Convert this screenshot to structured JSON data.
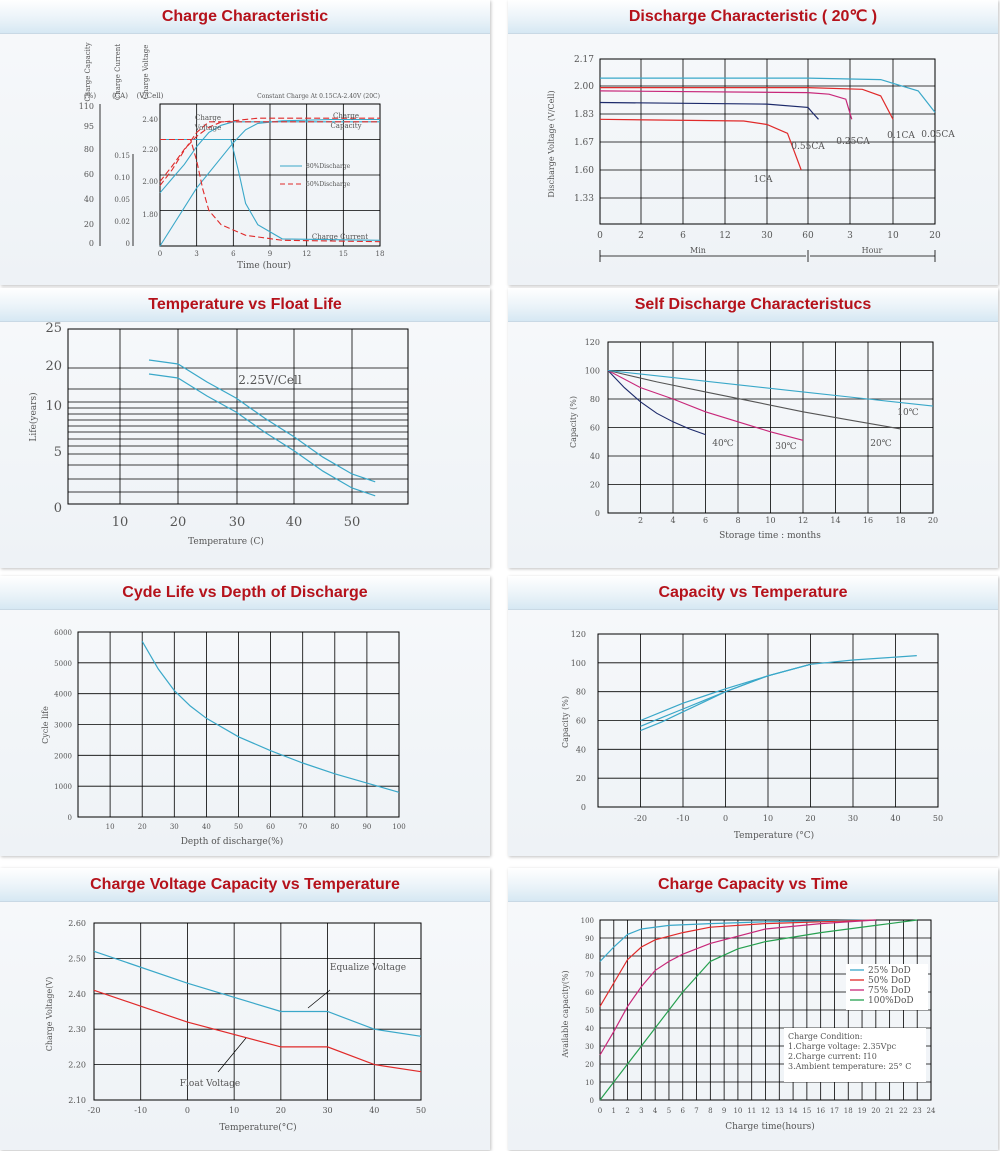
{
  "colors": {
    "title_red": "#b5121b",
    "teal": "#3aa8c9",
    "red": "#e02a2a",
    "magenta": "#c8287a",
    "navy": "#1d2a6b",
    "green": "#27a050",
    "grid": "#000000"
  },
  "panels": {
    "p1": {
      "title": "Charge Characteristic",
      "chart_data": {
        "type": "line",
        "title": "Charge Characteristic",
        "annotation": "Constant Charge At 0.15CA-2.40V (20C)",
        "axis_headers": {
          "capacity": "Charge Capacity",
          "current": "Charge Current",
          "voltage": "Charge Voltage",
          "units": [
            "(%)",
            "(CA)",
            "(V/Cell)"
          ]
        },
        "xlabel": "Time (hour)",
        "x_ticks": [
          "0",
          "3",
          "6",
          "9",
          "12",
          "15",
          "18"
        ],
        "capacity_ticks": [
          "110",
          "95",
          "80",
          "60",
          "40",
          "20",
          "0"
        ],
        "current_ticks": [
          "0.15",
          "0.10",
          "0.05",
          "0.02",
          "0"
        ],
        "voltage_ticks": [
          "2.40",
          "2.20",
          "2.00",
          "1.80"
        ],
        "legend": [
          "80%Discharge",
          "50%Discharge"
        ],
        "curve_labels": {
          "voltage": "Charge Voltage",
          "capacity": "Charge Capacity",
          "current": "Charge Current"
        },
        "series": [
          {
            "name": "80%Discharge",
            "curve": "Charge Voltage",
            "x": [
              0,
              1,
              2,
              3,
              4,
              5,
              6,
              18
            ],
            "y": [
              2.0,
              2.08,
              2.16,
              2.26,
              2.34,
              2.38,
              2.4,
              2.4
            ]
          },
          {
            "name": "80%Discharge",
            "curve": "Charge Capacity",
            "x": [
              0,
              3,
              6,
              7,
              8,
              10,
              14,
              18
            ],
            "y": [
              0,
              45,
              80,
              90,
              95,
              97,
              98,
              98
            ]
          },
          {
            "name": "80%Discharge",
            "curve": "Charge Current",
            "x": [
              0,
              5.8,
              6.5,
              7,
              8,
              10,
              18
            ],
            "y": [
              0.15,
              0.15,
              0.1,
              0.06,
              0.03,
              0.01,
              0.008
            ]
          },
          {
            "name": "50%Discharge",
            "curve": "Charge Voltage",
            "x": [
              0,
              1,
              2,
              3,
              4,
              18
            ],
            "y": [
              2.04,
              2.13,
              2.24,
              2.34,
              2.4,
              2.4
            ]
          },
          {
            "name": "50%Discharge",
            "curve": "Charge Capacity",
            "x": [
              0,
              1,
              2,
              3,
              4,
              5,
              8,
              18
            ],
            "y": [
              50,
              62,
              75,
              85,
              92,
              96,
              99,
              99
            ]
          },
          {
            "name": "50%Discharge",
            "curve": "Charge Current",
            "x": [
              0,
              2.5,
              3,
              3.5,
              4,
              5,
              7,
              10,
              18
            ],
            "y": [
              0.15,
              0.15,
              0.12,
              0.08,
              0.05,
              0.03,
              0.015,
              0.008,
              0.006
            ]
          }
        ]
      }
    },
    "p2": {
      "title": "Discharge Characteristic ( 20℃ )",
      "chart_data": {
        "type": "line",
        "title": "Discharge Characteristic ( 20℃ )",
        "ylabel": "Discharge Voltage (V/Cell)",
        "y_ticks": [
          "2.17",
          "2.00",
          "1.83",
          "1.67",
          "1.60",
          "1.33"
        ],
        "x_ticks": [
          "0",
          "2",
          "6",
          "12",
          "30",
          "60",
          "3",
          "10",
          "20"
        ],
        "x_unit_labels": [
          "Min",
          "Hour"
        ],
        "series": [
          {
            "name": "1CA",
            "x": [
              "0",
              "20min",
              "30min",
              "45min",
              "55min"
            ],
            "y": [
              1.8,
              1.79,
              1.77,
              1.72,
              1.6
            ]
          },
          {
            "name": "0.55CA",
            "x": [
              "0",
              "30min",
              "60min",
              "1.2h",
              "1.5h"
            ],
            "y": [
              1.9,
              1.89,
              1.87,
              1.84,
              1.8
            ]
          },
          {
            "name": "0.25CA",
            "x": [
              "0",
              "60min",
              "2h",
              "2.8h",
              "3.3h"
            ],
            "y": [
              1.97,
              1.96,
              1.95,
              1.92,
              1.8
            ]
          },
          {
            "name": "0.1CA",
            "x": [
              "0",
              "60min",
              "5h",
              "8h",
              "10h"
            ],
            "y": [
              1.99,
              1.99,
              1.98,
              1.94,
              1.8
            ]
          },
          {
            "name": "0.05CA",
            "x": [
              "0",
              "60min",
              "8h",
              "16h",
              "20h"
            ],
            "y": [
              2.05,
              2.05,
              2.04,
              1.97,
              1.84
            ]
          }
        ]
      }
    },
    "p3": {
      "title": "Temperature vs Float Life",
      "chart_data": {
        "type": "line",
        "title": "Temperature vs Float Life",
        "xlabel": "Temperature (C)",
        "ylabel": "Life(years)",
        "x_ticks": [
          "10",
          "20",
          "30",
          "40",
          "50"
        ],
        "y_ticks": [
          "25",
          "20",
          "10",
          "5",
          "0"
        ],
        "annotation": "2.25V/Cell",
        "series": [
          {
            "name": "2.25V/Cell",
            "x": [
              15,
              20,
              25,
              30,
              35,
              40,
              45,
              50,
              54
            ],
            "y": [
              20,
              19,
              14.5,
              10.5,
              8,
              6,
              4,
              2.5,
              1.8
            ]
          }
        ]
      }
    },
    "p4": {
      "title": "Self Discharge Characteristucs",
      "chart_data": {
        "type": "line",
        "title": "Self Discharge Characteristucs",
        "xlabel": "Storage time : months",
        "ylabel": "Capacity (%)",
        "x_ticks": [
          "2",
          "4",
          "6",
          "8",
          "10",
          "12",
          "14",
          "16",
          "18",
          "20"
        ],
        "y_ticks": [
          "120",
          "100",
          "80",
          "60",
          "40",
          "20",
          "0"
        ],
        "series": [
          {
            "name": "40C",
            "x": [
              0,
              1,
              2,
              3,
              4,
              5,
              6
            ],
            "y": [
              100,
              88,
              78,
              70,
              64,
              59,
              55
            ]
          },
          {
            "name": "30C",
            "x": [
              0,
              2,
              4,
              6,
              8,
              10,
              12
            ],
            "y": [
              100,
              88,
              80,
              71,
              64,
              57,
              51
            ]
          },
          {
            "name": "20C",
            "x": [
              0,
              3,
              6,
              9,
              12,
              15,
              18
            ],
            "y": [
              100,
              92,
              85,
              78,
              71,
              65,
              59
            ]
          },
          {
            "name": "10C",
            "x": [
              0,
              4,
              8,
              12,
              16,
              20
            ],
            "y": [
              100,
              95,
              90,
              85,
              80,
              75
            ]
          }
        ]
      }
    },
    "p5": {
      "title": "Cyde Life vs Depth of Discharge",
      "chart_data": {
        "type": "line",
        "title": "Cyde Life vs Depth of Discharge",
        "xlabel": "Depth of discharge(%)",
        "ylabel": "Cycle life",
        "x_ticks": [
          "10",
          "20",
          "30",
          "40",
          "50",
          "60",
          "70",
          "80",
          "90",
          "100"
        ],
        "y_ticks": [
          "6000",
          "5000",
          "4000",
          "3000",
          "2000",
          "1000",
          "0"
        ],
        "series": [
          {
            "name": "",
            "x": [
              20,
              25,
              30,
              35,
              40,
              50,
              60,
              70,
              80,
              90,
              100
            ],
            "y": [
              5700,
              4800,
              4100,
              3600,
              3200,
              2600,
              2150,
              1750,
              1400,
              1100,
              800
            ]
          }
        ]
      }
    },
    "p6": {
      "title": "Capacity vs Temperature",
      "chart_data": {
        "type": "line",
        "title": "Capacity vs Temperature",
        "xlabel": "Temperature (°C)",
        "ylabel": "Capacity (%)",
        "x_ticks": [
          "-20",
          "-10",
          "0",
          "10",
          "20",
          "30",
          "40",
          "50"
        ],
        "y_ticks": [
          "120",
          "100",
          "80",
          "60",
          "40",
          "20",
          "0"
        ],
        "series": [
          {
            "name": "",
            "x": [
              -20,
              -15,
              -10,
              -5,
              0,
              10,
              20,
              30,
              40,
              45
            ],
            "y": [
              60,
              66,
              72,
              77,
              82,
              91,
              99,
              102,
              104,
              105
            ]
          },
          {
            "name": "",
            "x": [
              -20,
              -15,
              -10,
              -5,
              0,
              10,
              20
            ],
            "y": [
              56,
              62,
              68,
              74,
              80,
              91,
              99
            ]
          },
          {
            "name": "",
            "x": [
              -20,
              -15,
              -10,
              -5,
              0,
              10,
              20
            ],
            "y": [
              53,
              59,
              66,
              73,
              80,
              91,
              99
            ]
          }
        ]
      }
    },
    "p7": {
      "title": "Charge Voltage Capacity vs Temperature",
      "chart_data": {
        "type": "line",
        "title": "Charge Voltage Capacity vs Temperature",
        "xlabel": "Temperature(°C)",
        "ylabel": "Charge Voltage(V)",
        "x_ticks": [
          "-20",
          "-10",
          "0",
          "10",
          "20",
          "30",
          "40",
          "50"
        ],
        "y_ticks": [
          "2.60",
          "2.50",
          "2.40",
          "2.30",
          "2.20",
          "2.10"
        ],
        "series": [
          {
            "name": "Equalize Voltage",
            "x": [
              -20,
              0,
              20,
              30,
              40,
              50
            ],
            "y": [
              2.52,
              2.43,
              2.35,
              2.35,
              2.3,
              2.28
            ]
          },
          {
            "name": "Float Voltage",
            "x": [
              -20,
              0,
              20,
              30,
              40,
              50
            ],
            "y": [
              2.41,
              2.32,
              2.25,
              2.25,
              2.2,
              2.18
            ]
          }
        ]
      }
    },
    "p8": {
      "title": "Charge Capacity vs Time",
      "chart_data": {
        "type": "line",
        "title": "Charge Capacity vs Time",
        "xlabel": "Charge time(hours)",
        "ylabel": "Available capacity(%)",
        "x_ticks": [
          "0",
          "1",
          "2",
          "3",
          "4",
          "5",
          "6",
          "7",
          "8",
          "9",
          "10",
          "11",
          "12",
          "13",
          "14",
          "15",
          "16",
          "17",
          "18",
          "19",
          "20",
          "21",
          "22",
          "23",
          "24"
        ],
        "y_ticks": [
          "100",
          "90",
          "80",
          "70",
          "60",
          "50",
          "40",
          "30",
          "20",
          "10",
          "0"
        ],
        "legend": [
          "25%  DoD",
          "50%  DoD",
          "75%  DoD",
          "100%DoD"
        ],
        "condition_lines": [
          "Charge Condition:",
          "1.Charge voltage: 2.35Vpc",
          "2.Charge current: I10",
          "3.Ambient temperature: 25° C"
        ],
        "series": [
          {
            "name": "25%  DoD",
            "x": [
              0,
              1,
              2,
              3,
              5,
              8,
              12,
              16,
              20
            ],
            "y": [
              77,
              85,
              92,
              95,
              97,
              98,
              99,
              99.5,
              100
            ]
          },
          {
            "name": "50%  DoD",
            "x": [
              0,
              1,
              2,
              3,
              4,
              6,
              8,
              12,
              16,
              20
            ],
            "y": [
              52,
              65,
              78,
              85,
              89,
              93,
              96,
              98,
              99,
              100
            ]
          },
          {
            "name": "75%  DoD",
            "x": [
              0,
              1,
              2,
              3,
              4,
              5,
              6,
              8,
              12,
              16,
              20
            ],
            "y": [
              25,
              38,
              52,
              63,
              72,
              77,
              81,
              87,
              95,
              98,
              100
            ]
          },
          {
            "name": "100%DoD",
            "x": [
              0,
              2,
              4,
              6,
              8,
              10,
              12,
              16,
              20,
              23
            ],
            "y": [
              0,
              20,
              40,
              60,
              77,
              84,
              88,
              93,
              97,
              100
            ]
          }
        ]
      }
    }
  }
}
